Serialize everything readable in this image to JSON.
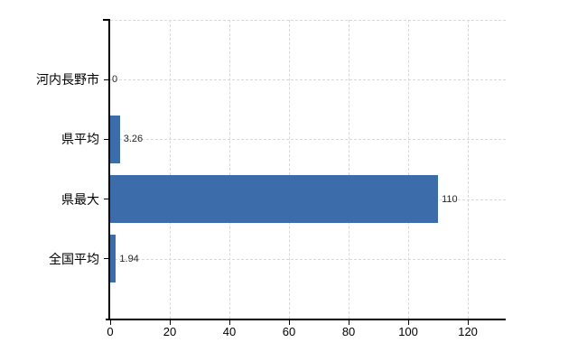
{
  "chart_data": {
    "type": "bar",
    "orientation": "horizontal",
    "title": "",
    "categories": [
      "河内長野市",
      "県平均",
      "県最大",
      "全国平均"
    ],
    "values": [
      0,
      3.26,
      110,
      1.94
    ],
    "value_labels": [
      "0",
      "3.26",
      "110",
      "1.94"
    ],
    "x_tick_values": [
      0,
      20,
      40,
      60,
      80,
      100,
      120
    ],
    "x_tick_labels": [
      "0",
      "20",
      "40",
      "60",
      "80",
      "100",
      "120"
    ],
    "xlim": [
      0,
      132.7
    ],
    "grid": true,
    "legend": false,
    "colors": {
      "bar": "#3c6caa",
      "axis": "#000000",
      "gridline": "#d8d8d8",
      "category_label": "#000000",
      "value_label": "#262626",
      "tick_label": "#000000",
      "background": "#ffffff"
    }
  }
}
